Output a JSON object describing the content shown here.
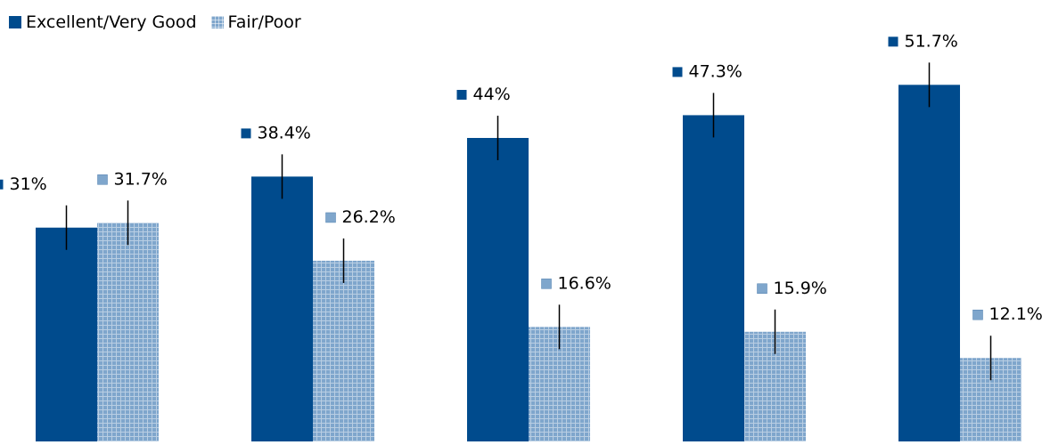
{
  "legend": {
    "series1": "Excellent/Very Good",
    "series2": "Fair/Poor"
  },
  "colors": {
    "series1": "#004b8d",
    "series2": "#7fa6cc"
  },
  "chart_data": {
    "type": "bar",
    "categories": [
      "",
      "",
      "",
      "",
      ""
    ],
    "series": [
      {
        "name": "Excellent/Very Good",
        "values": [
          31,
          38.4,
          44,
          47.3,
          51.7
        ],
        "labels": [
          "31%",
          "38.4%",
          "44%",
          "47.3%",
          "51.7%"
        ]
      },
      {
        "name": "Fair/Poor",
        "values": [
          31.7,
          26.2,
          16.6,
          15.9,
          12.1
        ],
        "labels": [
          "31.7%",
          "26.2%",
          "16.6%",
          "15.9%",
          "12.1%"
        ]
      }
    ],
    "error_bars": true,
    "legend_position": "top-left",
    "grid": false,
    "ylim": [
      0,
      60
    ]
  }
}
